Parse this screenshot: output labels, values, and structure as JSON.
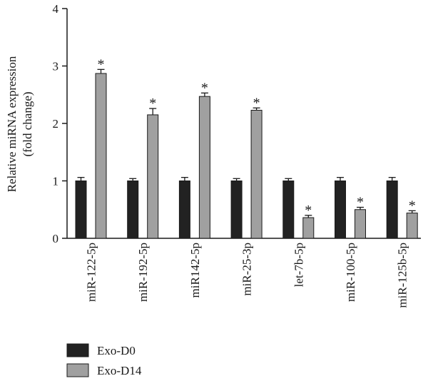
{
  "chart_data": {
    "type": "bar",
    "ylabel": "Relative miRNA expression",
    "ylabel_line2": "(fold change)",
    "ylim": [
      0,
      4
    ],
    "yticks": [
      "0",
      "1",
      "2",
      "3",
      "4"
    ],
    "categories": [
      "miR-122-5p",
      "miR-192-5p",
      "miR142-5p",
      "miR-25-3p",
      "let-7b-5p",
      "miR-100-5p",
      "miR-125b-5p"
    ],
    "series": [
      {
        "name": "Exo-D0",
        "color": "#222222",
        "values": [
          1.0,
          1.0,
          1.0,
          1.0,
          1.0,
          1.0,
          1.0
        ],
        "errors": [
          0.06,
          0.04,
          0.06,
          0.04,
          0.04,
          0.06,
          0.06
        ],
        "significance": [
          "",
          "",
          "",
          "",
          "",
          "",
          ""
        ]
      },
      {
        "name": "Exo-D14",
        "color": "#a0a0a0",
        "values": [
          2.87,
          2.15,
          2.47,
          2.23,
          0.36,
          0.5,
          0.44
        ],
        "errors": [
          0.07,
          0.11,
          0.06,
          0.04,
          0.04,
          0.04,
          0.04
        ],
        "significance": [
          "*",
          "*",
          "*",
          "*",
          "*",
          "*",
          "*"
        ]
      }
    ],
    "grid": false,
    "legend_position": "bottom-left"
  }
}
